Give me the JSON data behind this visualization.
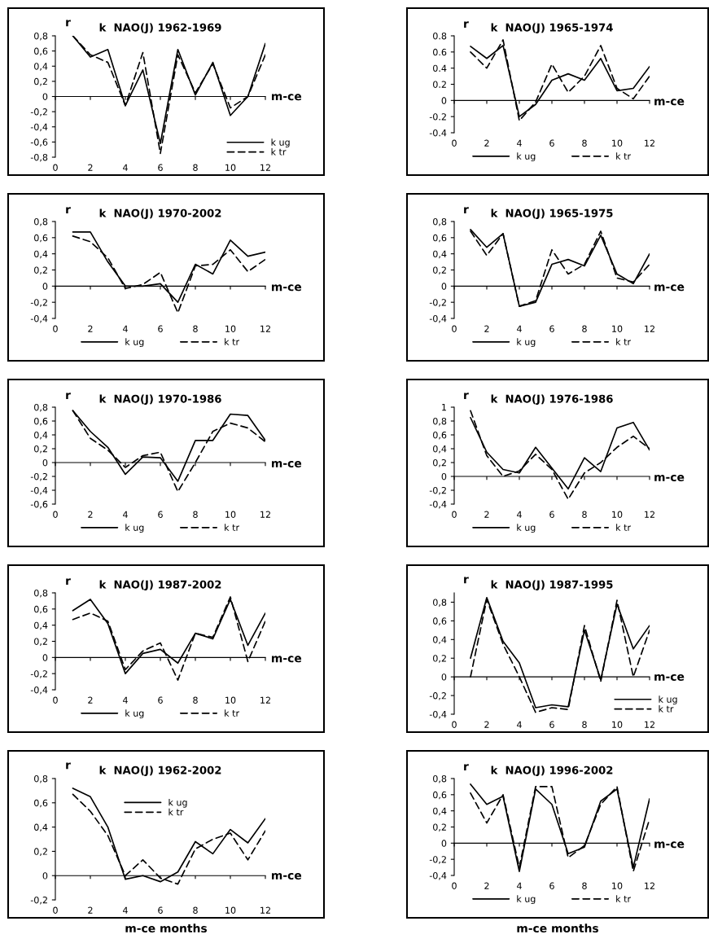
{
  "chart_data": [
    {
      "type": "line",
      "title": "k  NAO(J) 1962-1969",
      "xlabel": "m-ce",
      "ylabel": "r",
      "x": [
        1,
        2,
        3,
        4,
        5,
        6,
        7,
        8,
        9,
        10,
        11,
        12
      ],
      "xlim": [
        0,
        12
      ],
      "xticks": [
        0,
        2,
        4,
        6,
        8,
        10,
        12
      ],
      "ylim": [
        -0.8,
        0.8
      ],
      "yticks": [
        {
          "value": 0.8,
          "label": "0,8"
        },
        {
          "value": 0.6,
          "label": "0,6"
        },
        {
          "value": 0.4,
          "label": "0,4"
        },
        {
          "value": 0.2,
          "label": "0,2"
        },
        0,
        {
          "value": -0.2,
          "label": "-0,2"
        },
        {
          "value": -0.4,
          "label": "-0,4"
        },
        {
          "value": -0.6,
          "label": "-0,6"
        },
        {
          "value": -0.8,
          "label": "-0,8"
        }
      ],
      "legend": "bottom right",
      "series": [
        {
          "name": "k ug",
          "color": "#000000",
          "line_style": "solid",
          "values": [
            0.8,
            0.52,
            0.62,
            -0.12,
            0.35,
            -0.62,
            0.62,
            0.02,
            0.45,
            -0.25,
            0.0,
            0.7
          ]
        },
        {
          "name": "k tr",
          "color": "#000000",
          "line_style": "dashed",
          "values": [
            0.8,
            0.55,
            0.45,
            -0.12,
            0.58,
            -0.75,
            0.55,
            0.05,
            0.43,
            -0.15,
            0.0,
            0.55
          ]
        }
      ]
    },
    {
      "type": "line",
      "title": "k  NAO(J) 1965-1974",
      "xlabel": "m-ce",
      "ylabel": "r",
      "x": [
        1,
        2,
        3,
        4,
        5,
        6,
        7,
        8,
        9,
        10,
        11,
        12
      ],
      "xlim": [
        0,
        12
      ],
      "xticks": [
        0,
        2,
        4,
        6,
        8,
        10,
        12
      ],
      "ylim": [
        -0.4,
        0.8
      ],
      "yticks": [
        {
          "value": 0.8,
          "label": "0.8"
        },
        {
          "value": 0.6,
          "label": "0.6"
        },
        {
          "value": 0.4,
          "label": "0.4"
        },
        {
          "value": 0.2,
          "label": "0.2"
        },
        0,
        {
          "value": -0.2,
          "label": "-0.2"
        },
        {
          "value": -0.4,
          "label": "-0.4"
        }
      ],
      "legend": "bottom",
      "series": [
        {
          "name": "k ug",
          "color": "#000000",
          "line_style": "solid",
          "values": [
            0.67,
            0.52,
            0.68,
            -0.2,
            -0.05,
            0.25,
            0.33,
            0.25,
            0.52,
            0.12,
            0.15,
            0.42
          ]
        },
        {
          "name": "k tr",
          "color": "#000000",
          "line_style": "dashed",
          "values": [
            0.6,
            0.4,
            0.75,
            -0.25,
            -0.02,
            0.45,
            0.1,
            0.3,
            0.68,
            0.15,
            0.02,
            0.3
          ]
        }
      ]
    },
    {
      "type": "line",
      "title": "k  NAO(J) 1970-2002",
      "xlabel": "m-ce",
      "ylabel": "r",
      "x": [
        1,
        2,
        3,
        4,
        5,
        6,
        7,
        8,
        9,
        10,
        11,
        12
      ],
      "xlim": [
        0,
        12
      ],
      "xticks": [
        0,
        2,
        4,
        6,
        8,
        10,
        12
      ],
      "ylim": [
        -0.4,
        0.8
      ],
      "yticks": [
        {
          "value": 0.8,
          "label": "0,8"
        },
        {
          "value": 0.6,
          "label": "0,6"
        },
        {
          "value": 0.4,
          "label": "0,4"
        },
        {
          "value": 0.2,
          "label": "0,2"
        },
        0,
        {
          "value": -0.2,
          "label": "-0,2"
        },
        {
          "value": -0.4,
          "label": "-0,4"
        }
      ],
      "legend": "bottom",
      "series": [
        {
          "name": "k ug",
          "color": "#000000",
          "line_style": "solid",
          "values": [
            0.67,
            0.67,
            0.3,
            0.0,
            0.0,
            0.03,
            -0.2,
            0.27,
            0.15,
            0.57,
            0.37,
            0.42
          ]
        },
        {
          "name": "k tr",
          "color": "#000000",
          "line_style": "dashed",
          "values": [
            0.62,
            0.55,
            0.35,
            -0.03,
            0.02,
            0.17,
            -0.33,
            0.25,
            0.27,
            0.45,
            0.18,
            0.33
          ]
        }
      ]
    },
    {
      "type": "line",
      "title": "k  NAO(J) 1965-1975",
      "xlabel": "m-ce",
      "ylabel": "r",
      "x": [
        1,
        2,
        3,
        4,
        5,
        6,
        7,
        8,
        9,
        10,
        11,
        12
      ],
      "xlim": [
        0,
        12
      ],
      "xticks": [
        0,
        2,
        4,
        6,
        8,
        10,
        12
      ],
      "ylim": [
        -0.4,
        0.8
      ],
      "yticks": [
        {
          "value": 0.8,
          "label": "0,8"
        },
        {
          "value": 0.6,
          "label": "0,6"
        },
        {
          "value": 0.4,
          "label": "0,4"
        },
        {
          "value": 0.2,
          "label": "0,2"
        },
        0,
        {
          "value": -0.2,
          "label": "-0,2"
        },
        {
          "value": -0.4,
          "label": "-0,4"
        }
      ],
      "legend": "bottom",
      "series": [
        {
          "name": "k ug",
          "color": "#000000",
          "line_style": "solid",
          "values": [
            0.7,
            0.48,
            0.65,
            -0.25,
            -0.2,
            0.27,
            0.33,
            0.25,
            0.63,
            0.15,
            0.03,
            0.4
          ]
        },
        {
          "name": "k tr",
          "color": "#000000",
          "line_style": "dashed",
          "values": [
            0.68,
            0.38,
            0.65,
            -0.25,
            -0.18,
            0.45,
            0.15,
            0.27,
            0.68,
            0.1,
            0.05,
            0.27
          ]
        }
      ]
    },
    {
      "type": "line",
      "title": "k  NAO(J) 1970-1986",
      "xlabel": "m-ce",
      "ylabel": "r",
      "x": [
        1,
        2,
        3,
        4,
        5,
        6,
        7,
        8,
        9,
        10,
        11,
        12
      ],
      "xlim": [
        0,
        12
      ],
      "xticks": [
        0,
        2,
        4,
        6,
        8,
        10,
        12
      ],
      "ylim": [
        -0.6,
        0.8
      ],
      "yticks": [
        {
          "value": 0.8,
          "label": "0,8"
        },
        {
          "value": 0.6,
          "label": "0,6"
        },
        {
          "value": 0.4,
          "label": "0,4"
        },
        {
          "value": 0.2,
          "label": "0,2"
        },
        0,
        {
          "value": -0.2,
          "label": "-0,2"
        },
        {
          "value": -0.4,
          "label": "-0,4"
        },
        {
          "value": -0.6,
          "label": "-0,6"
        }
      ],
      "legend": "bottom",
      "series": [
        {
          "name": "k ug",
          "color": "#000000",
          "line_style": "solid",
          "values": [
            0.75,
            0.45,
            0.22,
            -0.17,
            0.08,
            0.07,
            -0.27,
            0.32,
            0.32,
            0.7,
            0.68,
            0.32
          ]
        },
        {
          "name": "k tr",
          "color": "#000000",
          "line_style": "dashed",
          "values": [
            0.75,
            0.35,
            0.18,
            -0.07,
            0.1,
            0.15,
            -0.42,
            0.0,
            0.45,
            0.57,
            0.5,
            0.3
          ]
        }
      ]
    },
    {
      "type": "line",
      "title": "k  NAO(J) 1976-1986",
      "xlabel": "m-ce",
      "ylabel": "r",
      "x": [
        1,
        2,
        3,
        4,
        5,
        6,
        7,
        8,
        9,
        10,
        11,
        12
      ],
      "xlim": [
        0,
        12
      ],
      "xticks": [
        0,
        2,
        4,
        6,
        8,
        10,
        12
      ],
      "ylim": [
        -0.4,
        1
      ],
      "yticks": [
        1,
        {
          "value": 0.8,
          "label": "0,8"
        },
        {
          "value": 0.6,
          "label": "0,6"
        },
        {
          "value": 0.4,
          "label": "0,4"
        },
        {
          "value": 0.2,
          "label": "0,2"
        },
        0,
        {
          "value": -0.2,
          "label": "-0,2"
        },
        {
          "value": -0.4,
          "label": "-0,4"
        }
      ],
      "legend": "bottom",
      "series": [
        {
          "name": "k ug",
          "color": "#000000",
          "line_style": "solid",
          "values": [
            0.85,
            0.35,
            0.1,
            0.05,
            0.42,
            0.12,
            -0.18,
            0.27,
            0.07,
            0.7,
            0.78,
            0.38
          ]
        },
        {
          "name": "k tr",
          "color": "#000000",
          "line_style": "dashed",
          "values": [
            0.95,
            0.3,
            0.0,
            0.08,
            0.32,
            0.1,
            -0.33,
            0.05,
            0.2,
            0.42,
            0.58,
            0.4
          ]
        }
      ]
    },
    {
      "type": "line",
      "title": "k  NAO(J) 1987-2002",
      "xlabel": "m-ce",
      "ylabel": "r",
      "x": [
        1,
        2,
        3,
        4,
        5,
        6,
        7,
        8,
        9,
        10,
        11,
        12
      ],
      "xlim": [
        0,
        12
      ],
      "xticks": [
        0,
        2,
        4,
        6,
        8,
        10,
        12
      ],
      "ylim": [
        -0.4,
        0.8
      ],
      "yticks": [
        {
          "value": 0.8,
          "label": "0,8"
        },
        {
          "value": 0.6,
          "label": "0,6"
        },
        {
          "value": 0.4,
          "label": "0,4"
        },
        {
          "value": 0.2,
          "label": "0,2"
        },
        0,
        {
          "value": -0.2,
          "label": "-0,2"
        },
        {
          "value": -0.4,
          "label": "-0,4"
        }
      ],
      "legend": "bottom",
      "series": [
        {
          "name": "k ug",
          "color": "#000000",
          "line_style": "solid",
          "values": [
            0.58,
            0.72,
            0.42,
            -0.2,
            0.05,
            0.1,
            -0.07,
            0.3,
            0.23,
            0.72,
            0.15,
            0.55
          ]
        },
        {
          "name": "k tr",
          "color": "#000000",
          "line_style": "dashed",
          "values": [
            0.47,
            0.55,
            0.45,
            -0.15,
            0.08,
            0.18,
            -0.28,
            0.3,
            0.25,
            0.75,
            -0.05,
            0.45
          ]
        }
      ]
    },
    {
      "type": "line",
      "title": "k  NAO(J) 1987-1995",
      "xlabel": "m-ce",
      "ylabel": "r",
      "x": [
        1,
        2,
        3,
        4,
        5,
        6,
        7,
        8,
        9,
        10,
        11,
        12
      ],
      "xlim": [
        0,
        12
      ],
      "xticks": [
        0,
        2,
        4,
        6,
        8,
        10,
        12
      ],
      "ylim": [
        -0.4,
        0.9
      ],
      "yticks": [
        {
          "value": 0.8,
          "label": "0,8"
        },
        {
          "value": 0.6,
          "label": "0,6"
        },
        {
          "value": 0.4,
          "label": "0,4"
        },
        {
          "value": 0.2,
          "label": "0,2"
        },
        0,
        {
          "value": -0.2,
          "label": "-0,2"
        },
        {
          "value": -0.4,
          "label": "-0,4"
        }
      ],
      "legend": "bottom right",
      "series": [
        {
          "name": "k ug",
          "color": "#000000",
          "line_style": "solid",
          "values": [
            0.2,
            0.85,
            0.38,
            0.15,
            -0.33,
            -0.3,
            -0.32,
            0.5,
            -0.03,
            0.78,
            0.3,
            0.55
          ]
        },
        {
          "name": "k tr",
          "color": "#000000",
          "line_style": "dashed",
          "values": [
            0.0,
            0.83,
            0.35,
            0.0,
            -0.38,
            -0.33,
            -0.35,
            0.55,
            -0.05,
            0.82,
            0.0,
            0.5
          ]
        }
      ]
    },
    {
      "type": "line",
      "title": "k  NAO(J) 1962-2002",
      "xlabel": "m-ce",
      "ylabel": "r",
      "annotations": [
        "m-ce months"
      ],
      "x": [
        1,
        2,
        3,
        4,
        5,
        6,
        7,
        8,
        9,
        10,
        11,
        12
      ],
      "xlim": [
        0,
        12
      ],
      "xticks": [
        0,
        2,
        4,
        6,
        8,
        10,
        12
      ],
      "ylim": [
        -0.2,
        0.8
      ],
      "yticks": [
        {
          "value": 0.8,
          "label": "0,8"
        },
        {
          "value": 0.6,
          "label": "0,6"
        },
        {
          "value": 0.4,
          "label": "0,4"
        },
        {
          "value": 0.2,
          "label": "0,2"
        },
        0,
        {
          "value": -0.2,
          "label": "-0,2"
        }
      ],
      "legend": "top",
      "series": [
        {
          "name": "k ug",
          "color": "#000000",
          "line_style": "solid",
          "values": [
            0.72,
            0.65,
            0.4,
            -0.03,
            0.0,
            -0.05,
            0.03,
            0.28,
            0.18,
            0.38,
            0.27,
            0.47
          ]
        },
        {
          "name": "k tr",
          "color": "#000000",
          "line_style": "dashed",
          "values": [
            0.67,
            0.53,
            0.33,
            0.0,
            0.13,
            -0.02,
            -0.07,
            0.22,
            0.3,
            0.35,
            0.13,
            0.37
          ]
        }
      ]
    },
    {
      "type": "line",
      "title": "k  NAO(J) 1996-2002",
      "xlabel": "m-ce",
      "ylabel": "r",
      "annotations": [
        "m-ce months"
      ],
      "x": [
        1,
        2,
        3,
        4,
        5,
        6,
        7,
        8,
        9,
        10,
        11,
        12
      ],
      "xlim": [
        0,
        12
      ],
      "xticks": [
        0,
        2,
        4,
        6,
        8,
        10,
        12
      ],
      "ylim": [
        -0.4,
        0.8
      ],
      "yticks": [
        {
          "value": 0.8,
          "label": "0,8"
        },
        {
          "value": 0.6,
          "label": "0,6"
        },
        {
          "value": 0.4,
          "label": "0,4"
        },
        {
          "value": 0.2,
          "label": "0,2"
        },
        0,
        {
          "value": -0.2,
          "label": "-0,2"
        },
        {
          "value": -0.4,
          "label": "-0,4"
        }
      ],
      "legend": "bottom",
      "series": [
        {
          "name": "k ug",
          "color": "#000000",
          "line_style": "solid",
          "values": [
            0.73,
            0.48,
            0.58,
            -0.35,
            0.67,
            0.48,
            -0.13,
            -0.05,
            0.52,
            0.67,
            -0.3,
            0.55
          ]
        },
        {
          "name": "k tr",
          "color": "#000000",
          "line_style": "dashed",
          "values": [
            0.62,
            0.25,
            0.6,
            -0.3,
            0.7,
            0.7,
            -0.18,
            -0.03,
            0.48,
            0.7,
            -0.35,
            0.3
          ]
        }
      ]
    }
  ]
}
